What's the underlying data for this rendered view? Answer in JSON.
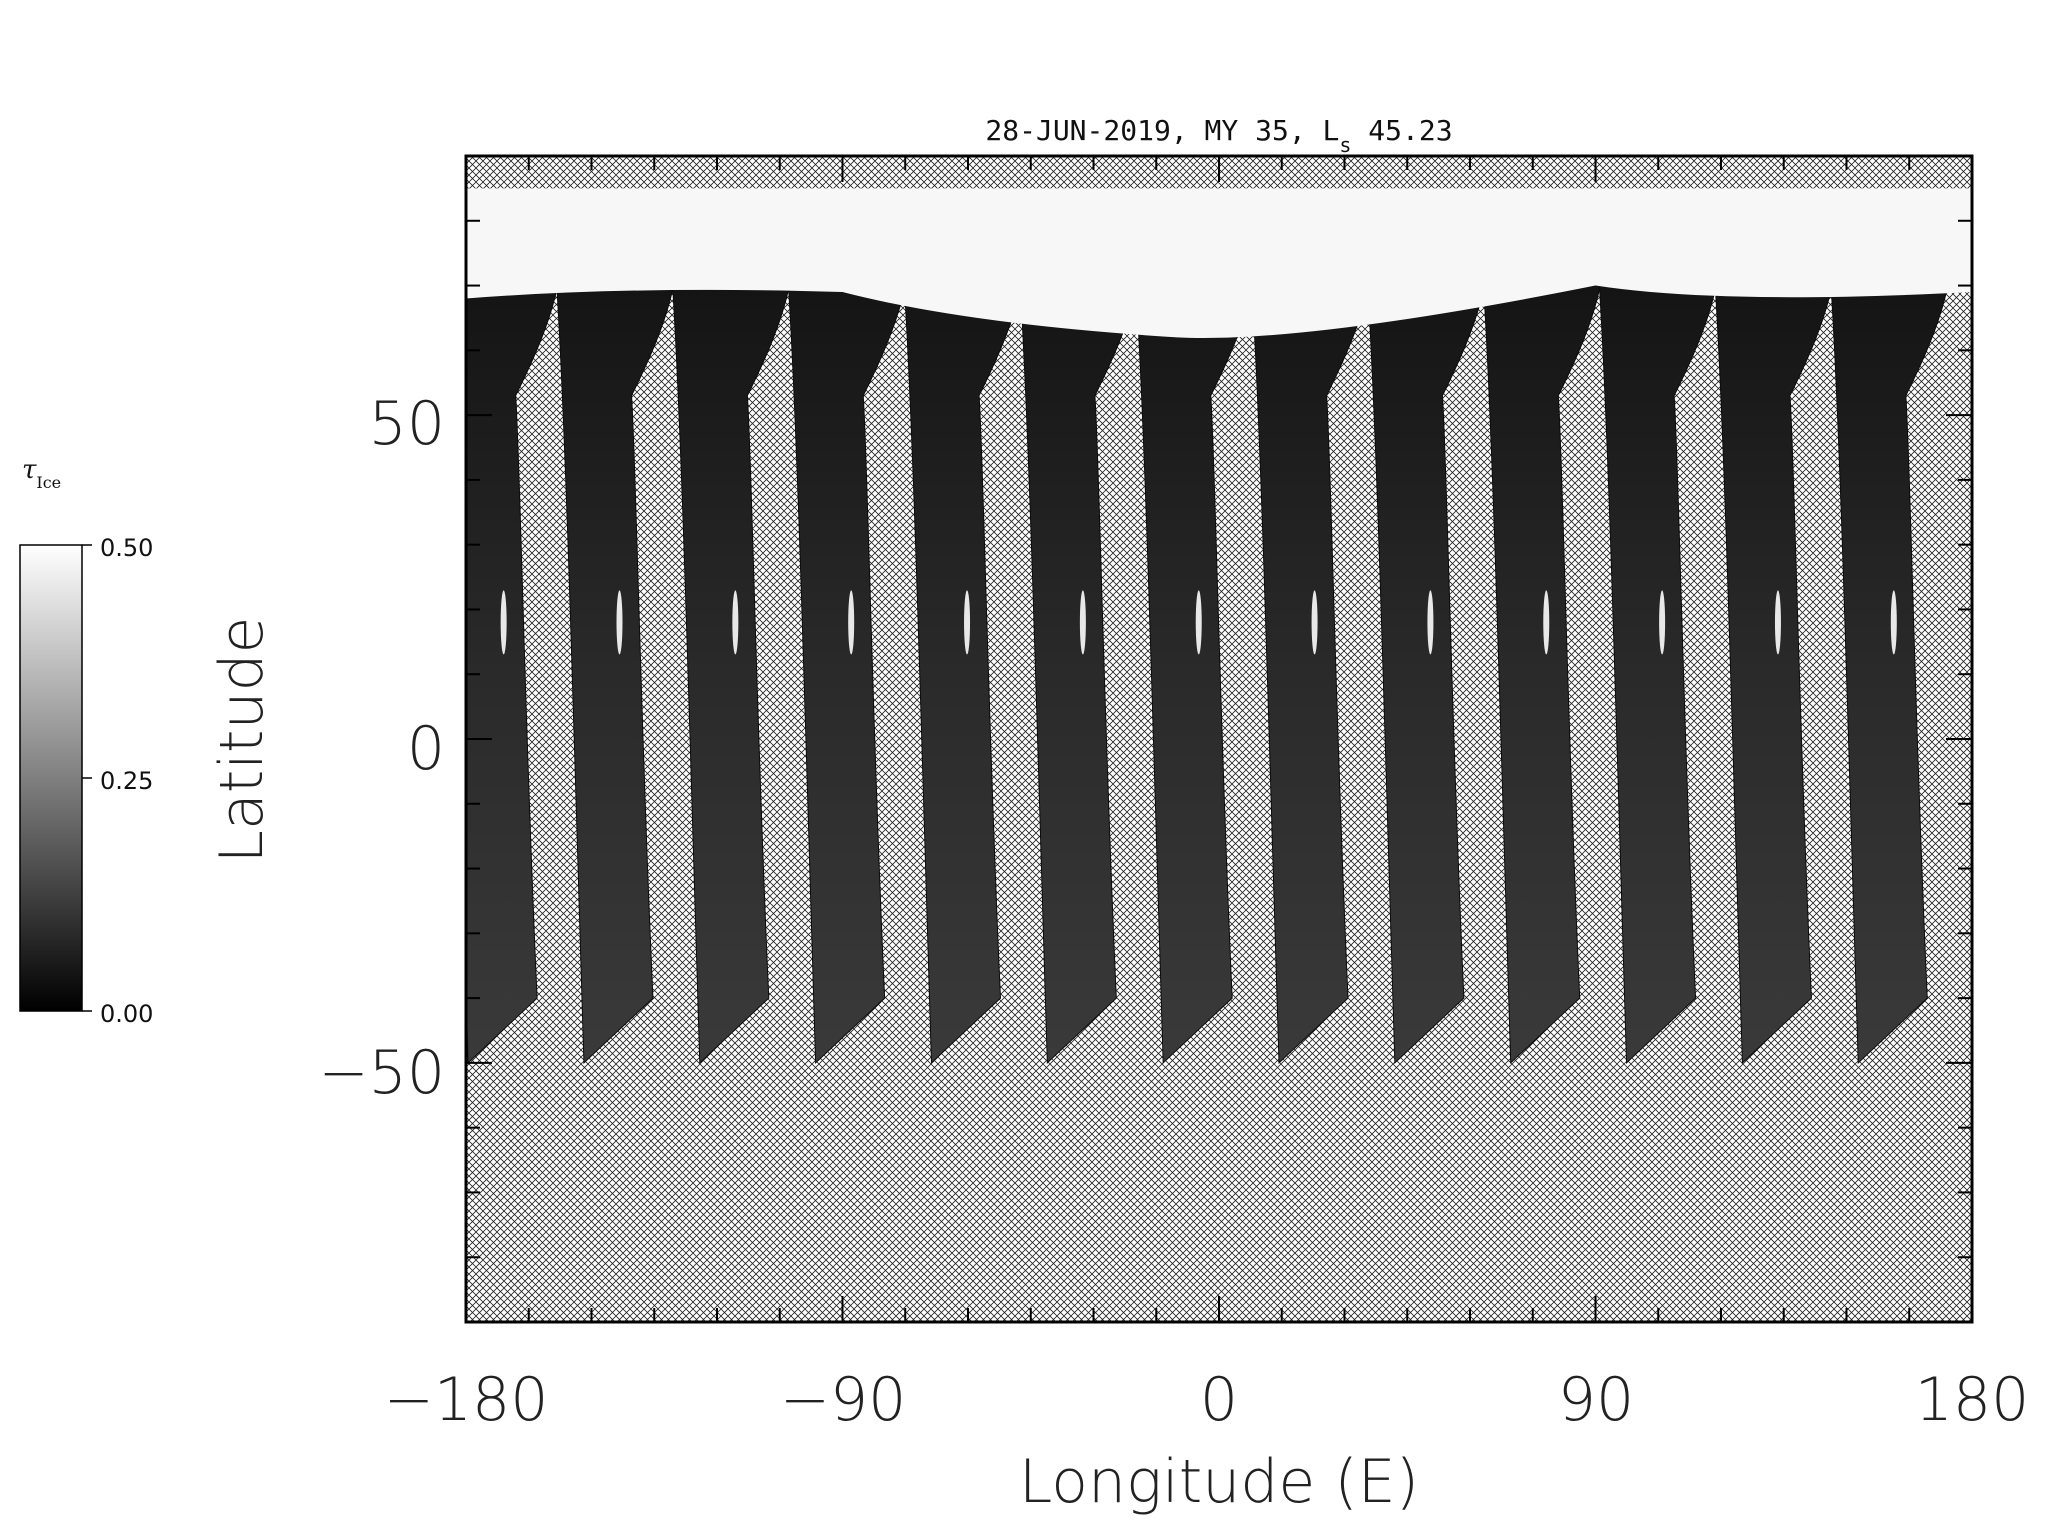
{
  "title": {
    "prefix": "28-JUN-2019, MY 35,  L",
    "subscript": "s",
    "suffix": " 45.23"
  },
  "axes": {
    "xlabel": "Longitude (E)",
    "ylabel": "Latitude",
    "xlim": [
      -180,
      180
    ],
    "ylim": [
      -90,
      90
    ],
    "xticks": [
      "-180",
      "-90",
      "0",
      "90",
      "180"
    ],
    "yticks": [
      "50",
      "0",
      "-50"
    ]
  },
  "colorbar": {
    "title": "τ",
    "title_subscript": "Ice",
    "ticks": [
      "0.50",
      "0.25",
      "0.00"
    ],
    "range": [
      0.0,
      0.5
    ],
    "colormap": "grayscale"
  },
  "map": {
    "polar_cap_lat_range": [
      68,
      85
    ],
    "swath_south_limit": -50,
    "swath_count": 13,
    "no_data_pattern": "crosshatch"
  },
  "colors": {
    "background": "#ffffff",
    "swath_dark": "#1a1a1a",
    "polar_cap": "#f7f7f7",
    "hatch": "#222222"
  }
}
